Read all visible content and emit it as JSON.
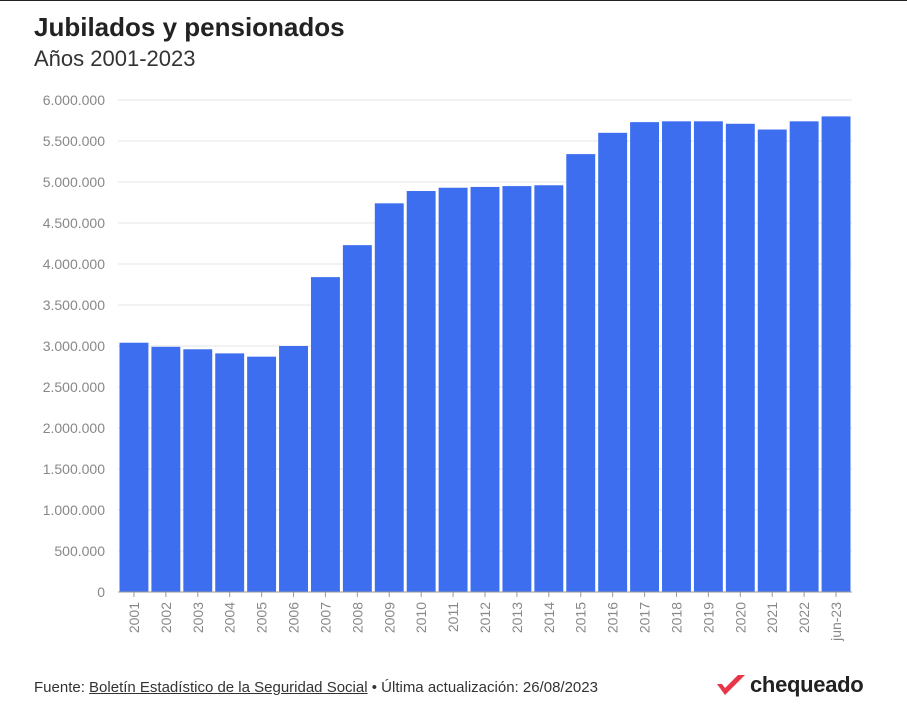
{
  "header": {
    "title": "Jubilados y pensionados",
    "subtitle": "Años 2001-2023"
  },
  "footer": {
    "source_prefix": "Fuente: ",
    "source_link": "Boletín Estadístico de la Seguridad Social",
    "updated": " • Última actualización: 26/08/2023"
  },
  "logo": {
    "text": "chequeado",
    "color": "#e8354a"
  },
  "colors": {
    "bar": "#3d6ef0",
    "grid": "#e6e6e6",
    "tick": "#888888"
  },
  "chart_data": {
    "type": "bar",
    "title": "Jubilados y pensionados",
    "subtitle": "Años 2001-2023",
    "xlabel": "",
    "ylabel": "",
    "ylim": [
      0,
      6000000
    ],
    "yticks": [
      0,
      500000,
      1000000,
      1500000,
      2000000,
      2500000,
      3000000,
      3500000,
      4000000,
      4500000,
      5000000,
      5500000,
      6000000
    ],
    "ytick_labels": [
      "0",
      "500.000",
      "1.000.000",
      "1.500.000",
      "2.000.000",
      "2.500.000",
      "3.000.000",
      "3.500.000",
      "4.000.000",
      "4.500.000",
      "5.000.000",
      "5.500.000",
      "6.000.000"
    ],
    "grid": true,
    "categories": [
      "2001",
      "2002",
      "2003",
      "2004",
      "2005",
      "2006",
      "2007",
      "2008",
      "2009",
      "2010",
      "2011",
      "2012",
      "2013",
      "2014",
      "2015",
      "2016",
      "2017",
      "2018",
      "2019",
      "2020",
      "2021",
      "2022",
      "jun-23"
    ],
    "values": [
      3040000,
      2990000,
      2960000,
      2910000,
      2870000,
      3000000,
      3840000,
      4230000,
      4740000,
      4890000,
      4930000,
      4940000,
      4950000,
      4960000,
      5340000,
      5600000,
      5730000,
      5740000,
      5740000,
      5710000,
      5640000,
      5740000,
      5800000
    ]
  }
}
